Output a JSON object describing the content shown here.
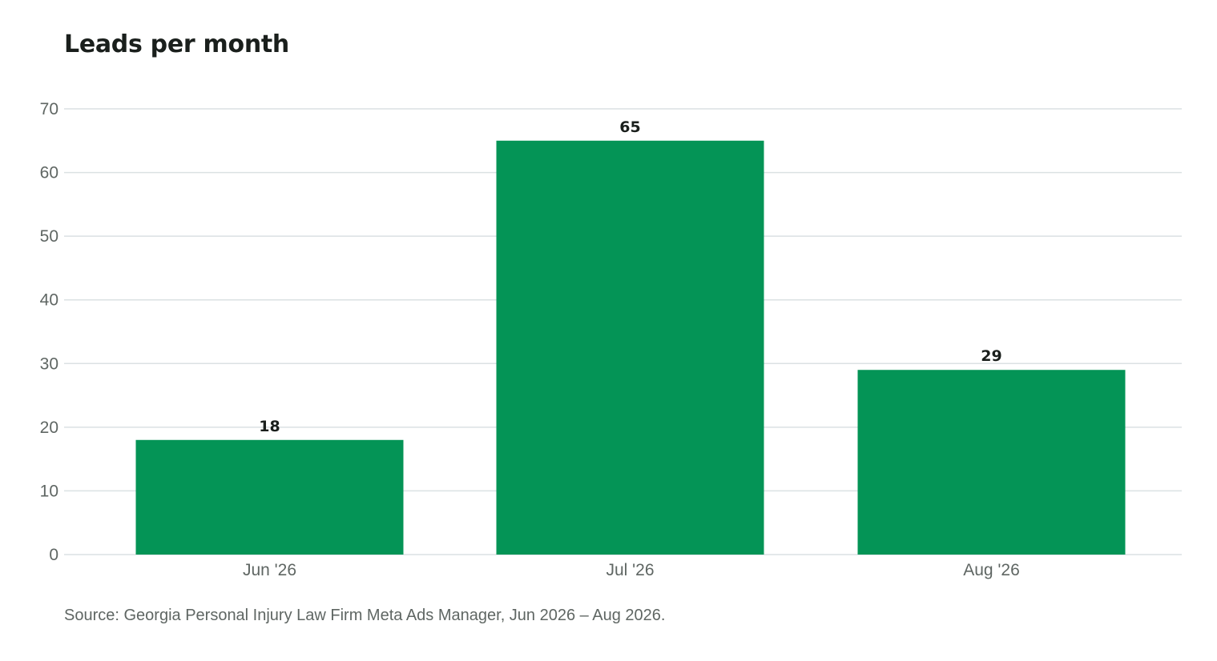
{
  "title": "Leads per month",
  "source": "Source: Georgia Personal Injury Law Firm Meta Ads Manager, Jun 2026 – Aug 2026.",
  "colors": {
    "bar": "#049456",
    "grid": "#dbe1e3",
    "text": "#1a1f1c",
    "muted": "#5f6663"
  },
  "chart_data": {
    "type": "bar",
    "title": "Leads per month",
    "categories": [
      "Jun '26",
      "Jul '26",
      "Aug '26"
    ],
    "values": [
      18,
      65,
      29
    ],
    "data_labels": [
      "18",
      "65",
      "29"
    ],
    "yticks": [
      0,
      10,
      20,
      30,
      40,
      50,
      60,
      70
    ],
    "ylim": [
      0,
      70
    ],
    "xlabel": "",
    "ylabel": "",
    "grid": true,
    "legend": "none"
  }
}
